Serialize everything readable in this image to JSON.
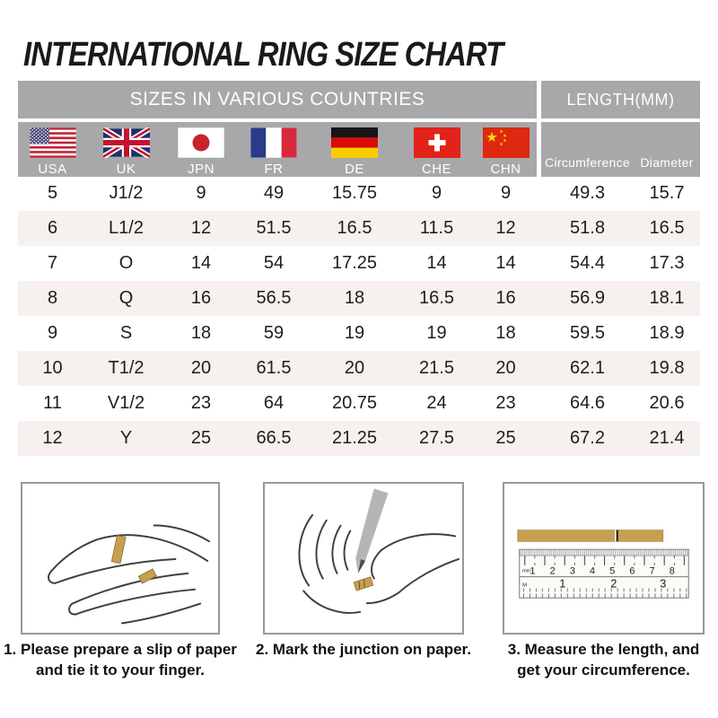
{
  "title": "INTERNATIONAL RING SIZE CHART",
  "colors": {
    "header_gray": "#a8a8aa",
    "row_stripe": "#f6f1ee",
    "paper_gold": "#c79f4f",
    "title_black": "#1a1a1a"
  },
  "chart_data": {
    "type": "table",
    "title": "INTERNATIONAL RING SIZE CHART",
    "group_headers": {
      "left": "SIZES IN VARIOUS COUNTRIES",
      "right": "LENGTH(MM)"
    },
    "columns": [
      "USA",
      "UK",
      "JPN",
      "FR",
      "DE",
      "CHE",
      "CHN",
      "Circumference",
      "Diameter"
    ],
    "flag_names": [
      "United States",
      "United Kingdom",
      "Japan",
      "France",
      "Germany",
      "Switzerland",
      "China"
    ],
    "rows": [
      [
        "5",
        "J1/2",
        "9",
        "49",
        "15.75",
        "9",
        "9",
        "49.3",
        "15.7"
      ],
      [
        "6",
        "L1/2",
        "12",
        "51.5",
        "16.5",
        "11.5",
        "12",
        "51.8",
        "16.5"
      ],
      [
        "7",
        "O",
        "14",
        "54",
        "17.25",
        "14",
        "14",
        "54.4",
        "17.3"
      ],
      [
        "8",
        "Q",
        "16",
        "56.5",
        "18",
        "16.5",
        "16",
        "56.9",
        "18.1"
      ],
      [
        "9",
        "S",
        "18",
        "59",
        "19",
        "19",
        "18",
        "59.5",
        "18.9"
      ],
      [
        "10",
        "T1/2",
        "20",
        "61.5",
        "20",
        "21.5",
        "20",
        "62.1",
        "19.8"
      ],
      [
        "11",
        "V1/2",
        "23",
        "64",
        "20.75",
        "24",
        "23",
        "64.6",
        "20.6"
      ],
      [
        "12",
        "Y",
        "25",
        "66.5",
        "21.25",
        "27.5",
        "25",
        "67.2",
        "21.4"
      ]
    ]
  },
  "instructions": {
    "step1_line1": "1. Please prepare a slip of paper",
    "step1_line2": "and tie it to your finger.",
    "step2_line1": "2. Mark the junction on paper.",
    "step3_line1": "3. Measure the length, and",
    "step3_line2": "get your circumference."
  },
  "ruler": {
    "unit_top": "mm",
    "cm": [
      "1",
      "2",
      "3",
      "4",
      "5",
      "6",
      "7",
      "8"
    ],
    "unit_bottom": "M",
    "inch": [
      "1",
      "2",
      "3"
    ]
  }
}
